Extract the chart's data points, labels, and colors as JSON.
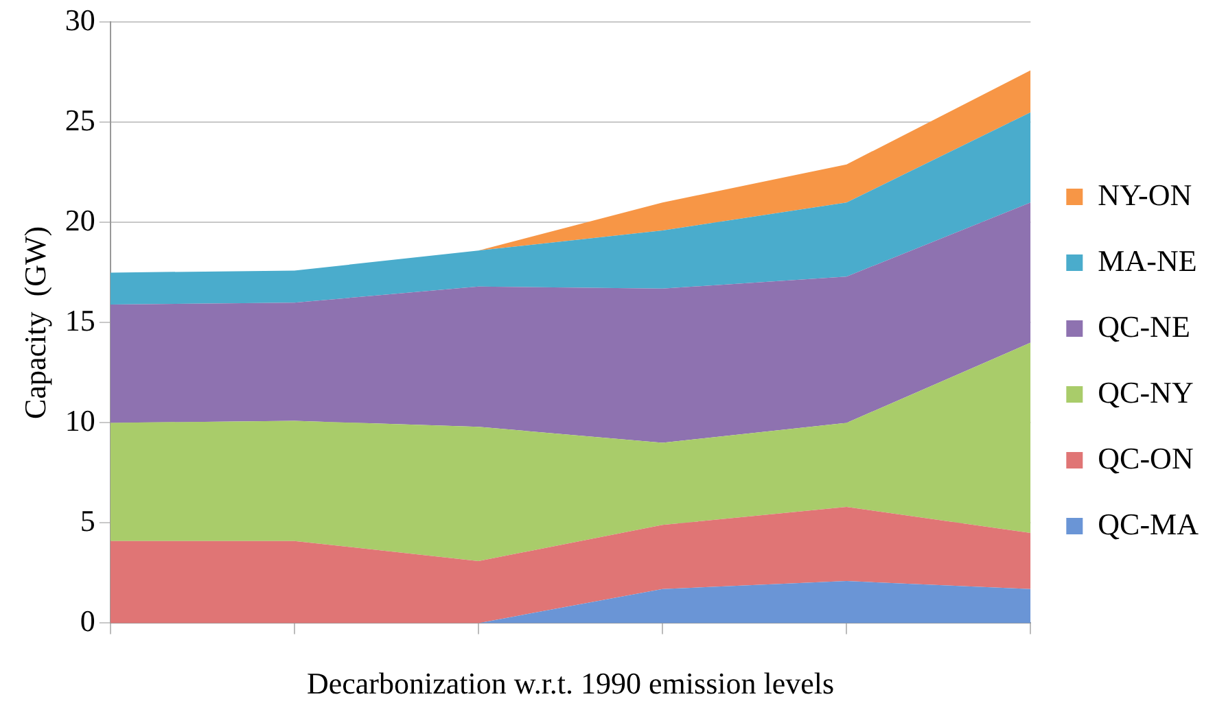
{
  "chart_data": {
    "type": "area",
    "stacked": true,
    "xlabel": "Decarbonization w.r.t. 1990 emission levels",
    "ylabel": "Capacity  (GW)",
    "categories": [
      null,
      null,
      null,
      null,
      null,
      null
    ],
    "ylim": [
      0,
      30
    ],
    "yticks": [
      0,
      5,
      10,
      15,
      20,
      25,
      30
    ],
    "grid": "y",
    "legend": "right",
    "series": [
      {
        "name": "QC-MA",
        "color": "#6a95d6",
        "values": [
          0,
          0,
          0,
          1.7,
          2.1,
          1.7
        ]
      },
      {
        "name": "QC-ON",
        "color": "#e07575",
        "values": [
          4.1,
          4.1,
          3.1,
          3.2,
          3.7,
          2.8
        ]
      },
      {
        "name": "QC-NY",
        "color": "#a9cc6a",
        "values": [
          5.9,
          6.0,
          6.7,
          4.1,
          4.2,
          9.5
        ]
      },
      {
        "name": "QC-NE",
        "color": "#8e72b0",
        "values": [
          5.9,
          5.9,
          7.0,
          7.7,
          7.3,
          7.0
        ]
      },
      {
        "name": "MA-NE",
        "color": "#4aaccc",
        "values": [
          1.6,
          1.6,
          1.8,
          2.9,
          3.7,
          4.5
        ]
      },
      {
        "name": "NY-ON",
        "color": "#f79646",
        "values": [
          null,
          null,
          0,
          1.4,
          1.9,
          2.1
        ]
      }
    ]
  }
}
